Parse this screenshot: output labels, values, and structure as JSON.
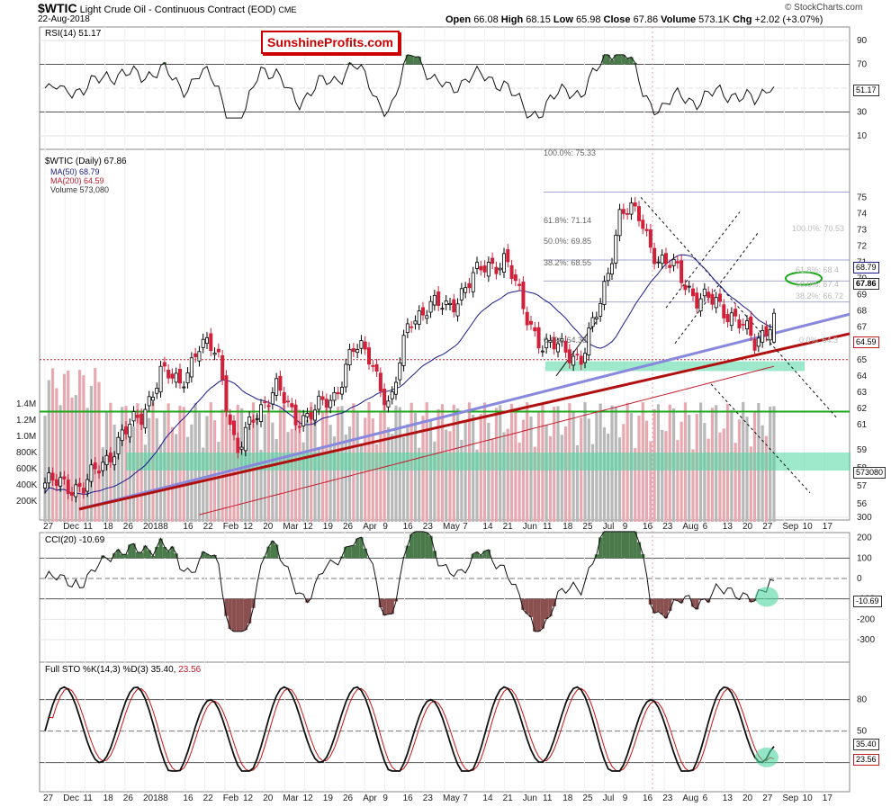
{
  "header": {
    "symbol": "$WTIC",
    "description": "Light Crude Oil - Continuous Contract (EOD)",
    "exchange": "CME",
    "date": "22-Aug-2018",
    "open_label": "Open",
    "open": "66.08",
    "high_label": "High",
    "high": "68.15",
    "low_label": "Low",
    "low": "65.98",
    "close_label": "Close",
    "close": "67.86",
    "volume_label": "Volume",
    "volume": "573.1K",
    "chg_label": "Chg",
    "chg": "+2.02 (+3.07%)",
    "credit": "© StockCharts.com"
  },
  "logo_text": "SunshineProfits.com",
  "rsi": {
    "label": "RSI(14)",
    "value": "51.17",
    "ticks": [
      "90",
      "70",
      "50",
      "30",
      "10"
    ],
    "last_badge": "51.17"
  },
  "price_panel": {
    "legend": {
      "main": "$WTIC (Daily) 67.86",
      "ma50": "MA(50) 68.79",
      "ma200": "MA(200) 64.59",
      "volume": "Volume 573,080"
    },
    "price_ticks": [
      "75",
      "74",
      "73",
      "72",
      "71",
      "70",
      "69",
      "68",
      "67",
      "66",
      "65",
      "64",
      "63",
      "62",
      "61",
      "59",
      "58",
      "57",
      "56"
    ],
    "volume_ticks": [
      "1.4M",
      "1.2M",
      "1.0M",
      "800K",
      "600K",
      "400K",
      "200K"
    ],
    "badges": {
      "ma50": "68.79",
      "close": "67.86",
      "ma200": "64.59",
      "volume": "573080"
    },
    "fib_left": {
      "f100": "100.0%: 75.33",
      "f618": "61.8%: 71.14",
      "f50": "50.0%: 69.85",
      "f382": "38.2%: 68.55",
      "f0": "0.0%: 64.38"
    },
    "fib_right": {
      "f100": "100.0%: 70.53",
      "f618": "61.8%: 68.4",
      "f50": "50.0%: 67.4",
      "f382": "38.2%: 66.72",
      "f0": "0.0%: 64.3"
    }
  },
  "x_axis": [
    "27",
    "Dec",
    "11",
    "18",
    "26",
    "2018",
    "8",
    "16",
    "22",
    "Feb",
    "12",
    "20",
    "Mar",
    "12",
    "19",
    "26",
    "Apr",
    "9",
    "16",
    "23",
    "May",
    "7",
    "14",
    "21",
    "Jun",
    "11",
    "18",
    "25",
    "Jul",
    "9",
    "16",
    "23",
    "Aug",
    "6",
    "13",
    "20",
    "27",
    "Sep",
    "10",
    "17"
  ],
  "cci": {
    "label": "CCI(20)",
    "value": "-10.69",
    "ticks": [
      "300",
      "200",
      "100",
      "0",
      "-100",
      "-200",
      "-300"
    ],
    "last_badge": "-10.69"
  },
  "sto": {
    "label": "Full STO %K(14,3) %D(3)",
    "k": "35.40",
    "d": "23.56",
    "ticks": [
      "80",
      "50",
      "20"
    ],
    "k_badge": "35.40",
    "d_badge": "23.56"
  },
  "colors": {
    "up": "#000000",
    "down": "#d0203a",
    "ma50": "#1a1a8c",
    "ma200": "#c41a2a",
    "support_zone": "#4fd6a0",
    "green_line": "#18a818",
    "blue_trend": "#8888dd",
    "red_trend": "#b01010",
    "vol_up": "#b8b8b8",
    "vol_down": "#e8a8b0",
    "osc_green": "#4a7a4a",
    "osc_red": "#8a5050"
  },
  "chart_data": {
    "type": "candlestick",
    "title": "$WTIC Light Crude Oil - Continuous Contract (EOD)",
    "period": "Daily, 27-Nov-2017 to 22-Aug-2018",
    "ylim": [
      55.5,
      75.8
    ],
    "last_bar": {
      "date": "2018-08-22",
      "open": 66.08,
      "high": 68.15,
      "low": 65.98,
      "close": 67.86,
      "volume": 573080
    },
    "moving_averages": {
      "MA50": 68.79,
      "MA200": 64.59
    },
    "weekly_closes": [
      {
        "w": "27 Nov",
        "c": 57.4
      },
      {
        "w": "4 Dec",
        "c": 57.3
      },
      {
        "w": "11 Dec",
        "c": 57.2
      },
      {
        "w": "18 Dec",
        "c": 58.5
      },
      {
        "w": "26 Dec",
        "c": 60.4
      },
      {
        "w": "2 Jan",
        "c": 61.4
      },
      {
        "w": "8 Jan",
        "c": 64.3
      },
      {
        "w": "16 Jan",
        "c": 63.4
      },
      {
        "w": "22 Jan",
        "c": 65.9
      },
      {
        "w": "29 Jan",
        "c": 65.4
      },
      {
        "w": "5 Feb",
        "c": 59.2
      },
      {
        "w": "12 Feb",
        "c": 61.6
      },
      {
        "w": "20 Feb",
        "c": 63.5
      },
      {
        "w": "26 Feb",
        "c": 61.2
      },
      {
        "w": "5 Mar",
        "c": 62.0
      },
      {
        "w": "12 Mar",
        "c": 62.3
      },
      {
        "w": "19 Mar",
        "c": 65.9
      },
      {
        "w": "26 Mar",
        "c": 64.9
      },
      {
        "w": "2 Apr",
        "c": 62.1
      },
      {
        "w": "9 Apr",
        "c": 67.4
      },
      {
        "w": "16 Apr",
        "c": 68.4
      },
      {
        "w": "23 Apr",
        "c": 68.1
      },
      {
        "w": "30 Apr",
        "c": 69.7
      },
      {
        "w": "7 May",
        "c": 70.7
      },
      {
        "w": "14 May",
        "c": 71.3
      },
      {
        "w": "21 May",
        "c": 67.9
      },
      {
        "w": "29 May",
        "c": 65.8
      },
      {
        "w": "4 Jun",
        "c": 65.7
      },
      {
        "w": "11 Jun",
        "c": 65.1
      },
      {
        "w": "18 Jun",
        "c": 68.6
      },
      {
        "w": "25 Jun",
        "c": 74.2
      },
      {
        "w": "2 Jul",
        "c": 73.8
      },
      {
        "w": "9 Jul",
        "c": 71.0
      },
      {
        "w": "16 Jul",
        "c": 70.5
      },
      {
        "w": "23 Jul",
        "c": 68.7
      },
      {
        "w": "30 Jul",
        "c": 68.5
      },
      {
        "w": "6 Aug",
        "c": 67.6
      },
      {
        "w": "13 Aug",
        "c": 65.9
      },
      {
        "w": "20 Aug",
        "c": 67.86
      }
    ],
    "fibonacci_retracements": [
      {
        "level": "100.0%",
        "value": 75.33
      },
      {
        "level": "61.8%",
        "value": 71.14
      },
      {
        "level": "50.0%",
        "value": 69.85
      },
      {
        "level": "38.2%",
        "value": 68.55
      },
      {
        "level": "0.0%",
        "value": 64.38
      },
      {
        "level": "100.0%",
        "value": 70.53
      },
      {
        "level": "61.8%",
        "value": 68.4
      },
      {
        "level": "50.0%",
        "value": 67.4
      },
      {
        "level": "38.2%",
        "value": 66.72
      },
      {
        "level": "0.0%",
        "value": 64.3
      }
    ],
    "indicators": {
      "RSI14": 51.17,
      "CCI20": -10.69,
      "STO_K": 35.4,
      "STO_D": 23.56
    }
  }
}
